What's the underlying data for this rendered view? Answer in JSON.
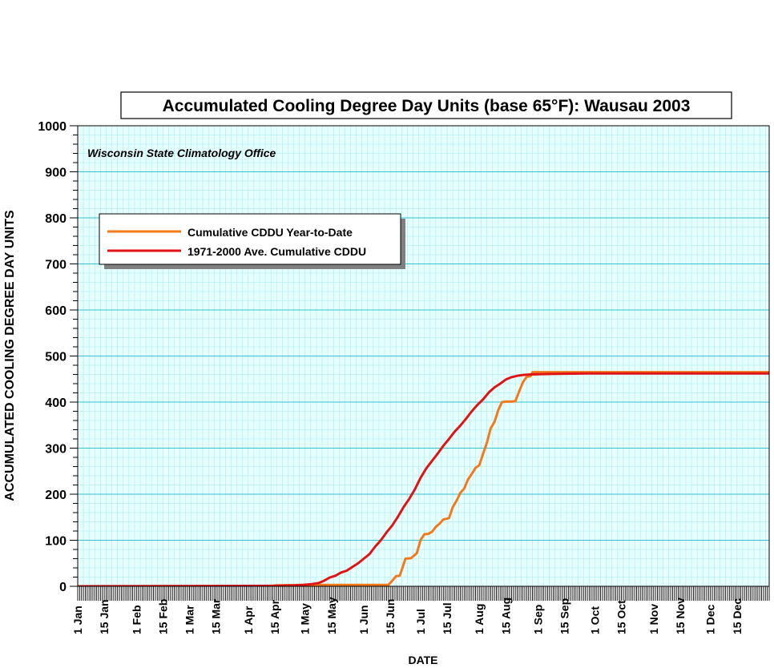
{
  "colors": {
    "plot_bg": "#e6ffff",
    "minor_grid": "#a6ecf2",
    "major_grid": "#33c3d1",
    "axis": "#000000",
    "ytd_line": "#f27a1a",
    "avg_line": "#e01414",
    "legend_shadow": "#808080"
  },
  "chart_data": {
    "type": "line",
    "title": "Accumulated Cooling Degree Day Units (base 65°F): Wausau 2003",
    "subtitle": "Wisconsin State Climatology Office",
    "xlabel": "DATE",
    "ylabel": "ACCUMULATED COOLING DEGREE DAY UNITS",
    "ylim": [
      0,
      1000
    ],
    "xlim": [
      1,
      366
    ],
    "yticks": [
      0,
      100,
      200,
      300,
      400,
      500,
      600,
      700,
      800,
      900,
      1000
    ],
    "xticks": [
      {
        "label": "1 Jan",
        "day": 1
      },
      {
        "label": "15 Jan",
        "day": 15
      },
      {
        "label": "1 Feb",
        "day": 32
      },
      {
        "label": "15 Feb",
        "day": 46
      },
      {
        "label": "1 Mar",
        "day": 60
      },
      {
        "label": "15 Mar",
        "day": 74
      },
      {
        "label": "1 Apr",
        "day": 91
      },
      {
        "label": "15 Apr",
        "day": 105
      },
      {
        "label": "1 May",
        "day": 121
      },
      {
        "label": "15 May",
        "day": 135
      },
      {
        "label": "1 Jun",
        "day": 152
      },
      {
        "label": "15 Jun",
        "day": 166
      },
      {
        "label": "1 Jul",
        "day": 182
      },
      {
        "label": "15 Jul",
        "day": 196
      },
      {
        "label": "1 Aug",
        "day": 213
      },
      {
        "label": "15 Aug",
        "day": 227
      },
      {
        "label": "1 Sep",
        "day": 244
      },
      {
        "label": "15 Sep",
        "day": 258
      },
      {
        "label": "1 Oct",
        "day": 274
      },
      {
        "label": "15 Oct",
        "day": 288
      },
      {
        "label": "1 Nov",
        "day": 305
      },
      {
        "label": "15 Nov",
        "day": 319
      },
      {
        "label": "1 Dec",
        "day": 335
      },
      {
        "label": "15 Dec",
        "day": 349
      }
    ],
    "grid": true,
    "legend_position": "upper-left",
    "series": [
      {
        "name": "Cumulative CDDU Year-to-Date",
        "color": "#f27a1a",
        "points": [
          [
            1,
            0
          ],
          [
            104,
            0
          ],
          [
            105,
            2
          ],
          [
            120,
            3
          ],
          [
            140,
            3
          ],
          [
            160,
            3
          ],
          [
            165,
            3
          ],
          [
            167,
            12
          ],
          [
            169,
            22
          ],
          [
            171,
            23
          ],
          [
            172,
            35
          ],
          [
            174,
            60
          ],
          [
            177,
            61
          ],
          [
            180,
            72
          ],
          [
            182,
            101
          ],
          [
            184,
            113
          ],
          [
            186,
            114
          ],
          [
            188,
            118
          ],
          [
            190,
            129
          ],
          [
            192,
            136
          ],
          [
            194,
            145
          ],
          [
            197,
            148
          ],
          [
            199,
            172
          ],
          [
            201,
            186
          ],
          [
            203,
            203
          ],
          [
            205,
            212
          ],
          [
            207,
            232
          ],
          [
            209,
            244
          ],
          [
            211,
            257
          ],
          [
            213,
            263
          ],
          [
            215,
            288
          ],
          [
            217,
            312
          ],
          [
            219,
            343
          ],
          [
            221,
            357
          ],
          [
            223,
            383
          ],
          [
            225,
            400
          ],
          [
            227,
            401
          ],
          [
            230,
            401
          ],
          [
            232,
            402
          ],
          [
            234,
            423
          ],
          [
            236,
            443
          ],
          [
            238,
            455
          ],
          [
            240,
            456
          ],
          [
            241,
            465
          ],
          [
            366,
            465
          ]
        ]
      },
      {
        "name": "1971-2000 Ave. Cumulative CDDU",
        "color": "#e01414",
        "points": [
          [
            1,
            0
          ],
          [
            105,
            1
          ],
          [
            115,
            2
          ],
          [
            120,
            3
          ],
          [
            125,
            5
          ],
          [
            128,
            7
          ],
          [
            131,
            12
          ],
          [
            134,
            19
          ],
          [
            137,
            23
          ],
          [
            140,
            30
          ],
          [
            143,
            34
          ],
          [
            146,
            42
          ],
          [
            149,
            50
          ],
          [
            152,
            60
          ],
          [
            155,
            70
          ],
          [
            158,
            86
          ],
          [
            161,
            100
          ],
          [
            164,
            117
          ],
          [
            167,
            132
          ],
          [
            170,
            151
          ],
          [
            173,
            172
          ],
          [
            176,
            190
          ],
          [
            179,
            211
          ],
          [
            182,
            236
          ],
          [
            185,
            256
          ],
          [
            188,
            272
          ],
          [
            191,
            288
          ],
          [
            194,
            305
          ],
          [
            197,
            320
          ],
          [
            200,
            336
          ],
          [
            203,
            349
          ],
          [
            206,
            364
          ],
          [
            209,
            380
          ],
          [
            212,
            394
          ],
          [
            215,
            406
          ],
          [
            218,
            421
          ],
          [
            221,
            432
          ],
          [
            224,
            440
          ],
          [
            227,
            449
          ],
          [
            230,
            454
          ],
          [
            233,
            457
          ],
          [
            236,
            459
          ],
          [
            240,
            460
          ],
          [
            250,
            461
          ],
          [
            270,
            462
          ],
          [
            366,
            462
          ]
        ]
      }
    ]
  }
}
